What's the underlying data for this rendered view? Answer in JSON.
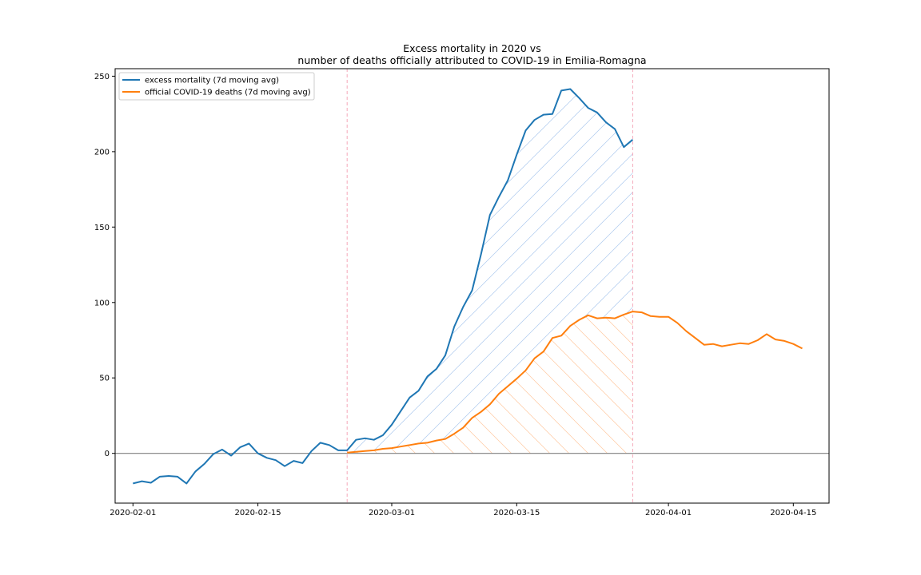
{
  "chart_data": {
    "type": "line",
    "title_line1": "Excess mortality in 2020 vs",
    "title_line2": "number of deaths officially attributed to COVID-19 in Emilia-Romagna",
    "xlabel": "",
    "ylabel": "",
    "x_range": [
      "2020-01-30",
      "2020-04-19"
    ],
    "ylim": [
      -33,
      255
    ],
    "x_ticks": [
      "2020-02-01",
      "2020-02-15",
      "2020-03-01",
      "2020-03-15",
      "2020-04-01",
      "2020-04-15"
    ],
    "y_ticks": [
      0,
      50,
      100,
      150,
      200,
      250
    ],
    "grid": false,
    "legend_position": "top-left",
    "zero_line": 0,
    "vertical_markers": [
      "2020-02-25",
      "2020-03-28"
    ],
    "colors": {
      "excess": "#1f77b4",
      "official": "#ff7f0e",
      "marker": "#f4a7b9",
      "zero_line": "#808080",
      "excess_hatch": "#aac8ee",
      "official_hatch": "#ffc89e"
    },
    "series": [
      {
        "name": "excess mortality (7d moving avg)",
        "start_date": "2020-02-01",
        "values": [
          -20,
          -18.5,
          -19.5,
          -15.5,
          -15,
          -15.5,
          -20,
          -12,
          -7,
          -0.5,
          2.5,
          -1.5,
          4,
          6.5,
          0,
          -3,
          -4.5,
          -8.5,
          -5,
          -6.5,
          1.5,
          7,
          5.5,
          2,
          2,
          9,
          10,
          9,
          12,
          19,
          28,
          37,
          41.5,
          51,
          56,
          65,
          84,
          97,
          108,
          132,
          158,
          170,
          181,
          198,
          214,
          221,
          224.5,
          225,
          240.5,
          241.5,
          235.5,
          229,
          226,
          219.5,
          215,
          203,
          208
        ]
      },
      {
        "name": "official COVID-19 deaths (7d moving avg)",
        "start_date": "2020-02-25",
        "values": [
          0.5,
          1,
          1.5,
          2,
          3,
          3.5,
          4.5,
          5.5,
          6.5,
          7,
          8.5,
          9.5,
          13,
          17,
          23.5,
          27.5,
          32.5,
          39.5,
          44.5,
          49.5,
          55,
          63,
          67.5,
          76.5,
          78,
          84.5,
          88.5,
          91.5,
          89.5,
          90,
          89.5,
          92,
          94,
          93.5,
          91,
          90.5,
          90.5,
          86.5,
          81,
          76.5,
          72,
          72.5,
          71,
          72,
          73,
          72.5,
          75,
          79,
          75.5,
          74.5,
          72.5,
          69.5
        ]
      }
    ]
  }
}
